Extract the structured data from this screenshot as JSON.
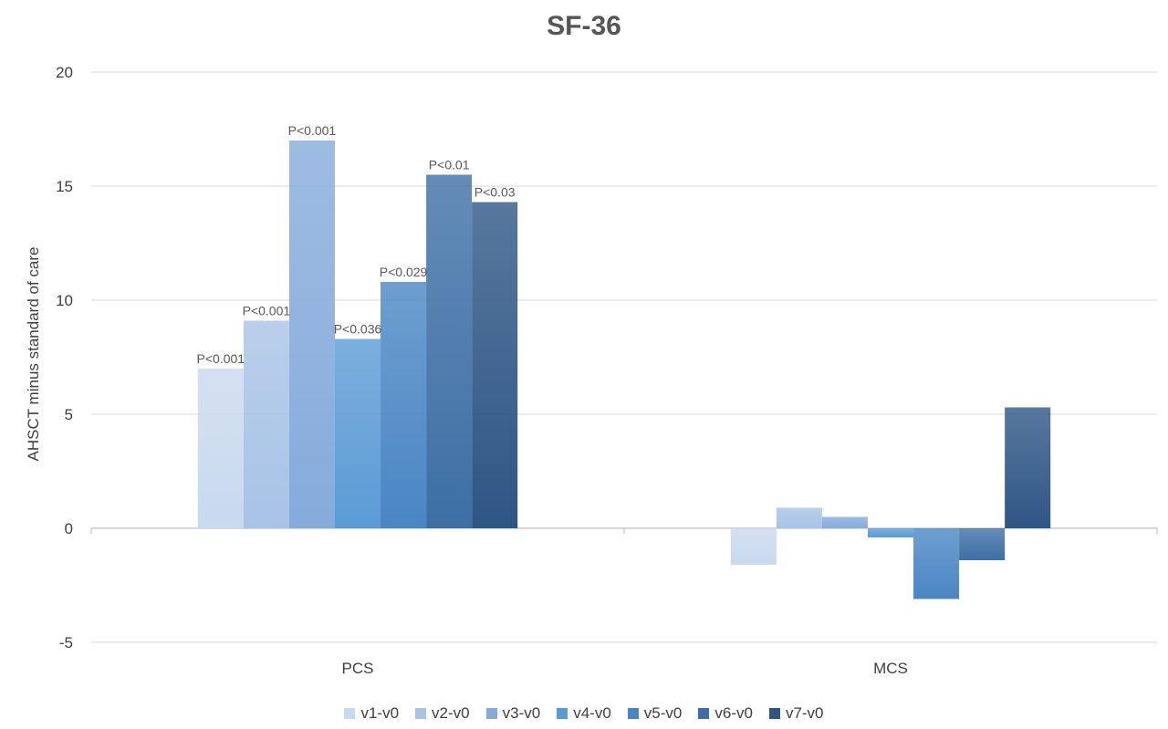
{
  "chart_data": {
    "type": "bar",
    "title": "SF-36",
    "ylabel": "AHSCT minus standard of care",
    "xlabel": "",
    "categories": [
      "PCS",
      "MCS"
    ],
    "ylim": [
      -5,
      20
    ],
    "yticks": [
      "20",
      "15",
      "10",
      "5",
      "0",
      "-5"
    ],
    "grid": true,
    "legend_position": "bottom",
    "series": [
      {
        "name": "v1-v0",
        "color": "#c9d9ee",
        "values": [
          7.0,
          -1.6
        ],
        "labels": [
          "P<0.001",
          ""
        ]
      },
      {
        "name": "v2-v0",
        "color": "#a8c3e6",
        "values": [
          9.1,
          0.9
        ],
        "labels": [
          "P<0.001",
          ""
        ]
      },
      {
        "name": "v3-v0",
        "color": "#86abdb",
        "values": [
          17.0,
          0.5
        ],
        "labels": [
          "P<0.001",
          ""
        ]
      },
      {
        "name": "v4-v0",
        "color": "#5b9bd5",
        "values": [
          8.3,
          -0.4
        ],
        "labels": [
          "P<0.036",
          ""
        ]
      },
      {
        "name": "v5-v0",
        "color": "#4a86c4",
        "values": [
          10.8,
          -3.1
        ],
        "labels": [
          "P<0.029",
          ""
        ]
      },
      {
        "name": "v6-v0",
        "color": "#3d6fa5",
        "values": [
          15.5,
          -1.4
        ],
        "labels": [
          "P<0.01",
          ""
        ]
      },
      {
        "name": "v7-v0",
        "color": "#2e5685",
        "values": [
          14.3,
          5.3
        ],
        "labels": [
          "P<0.03",
          ""
        ]
      }
    ]
  }
}
